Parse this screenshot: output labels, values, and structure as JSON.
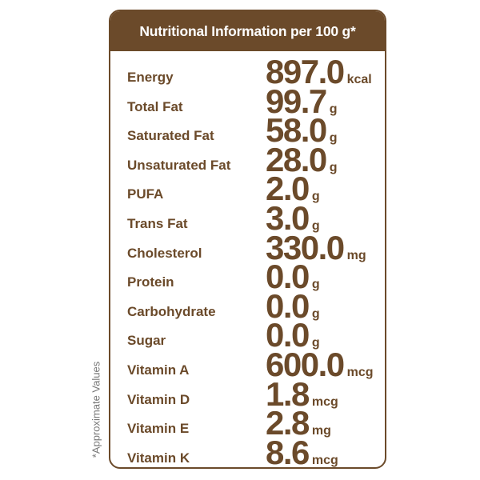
{
  "title": "Nutritional Information per 100 g*",
  "note": "*Approximate Values",
  "colors": {
    "brand": "#6b4a2a",
    "text_on_header": "#ffffff"
  },
  "rows": [
    {
      "label": "Energy",
      "value": "897.0",
      "unit": "kcal"
    },
    {
      "label": "Total Fat",
      "value": "99.7",
      "unit": "g"
    },
    {
      "label": "Saturated Fat",
      "value": "58.0",
      "unit": "g"
    },
    {
      "label": "Unsaturated Fat",
      "value": "28.0",
      "unit": "g"
    },
    {
      "label": "PUFA",
      "value": "2.0",
      "unit": "g"
    },
    {
      "label": "Trans Fat",
      "value": "3.0",
      "unit": "g"
    },
    {
      "label": "Cholesterol",
      "value": "330.0",
      "unit": "mg"
    },
    {
      "label": "Protein",
      "value": "0.0",
      "unit": "g"
    },
    {
      "label": "Carbohydrate",
      "value": "0.0",
      "unit": "g"
    },
    {
      "label": "Sugar",
      "value": "0.0",
      "unit": "g"
    },
    {
      "label": "Vitamin A",
      "value": "600.0",
      "unit": "mcg"
    },
    {
      "label": "Vitamin D",
      "value": "1.8",
      "unit": "mcg"
    },
    {
      "label": "Vitamin E",
      "value": "2.8",
      "unit": "mg"
    },
    {
      "label": "Vitamin K",
      "value": "8.6",
      "unit": "mcg"
    }
  ]
}
